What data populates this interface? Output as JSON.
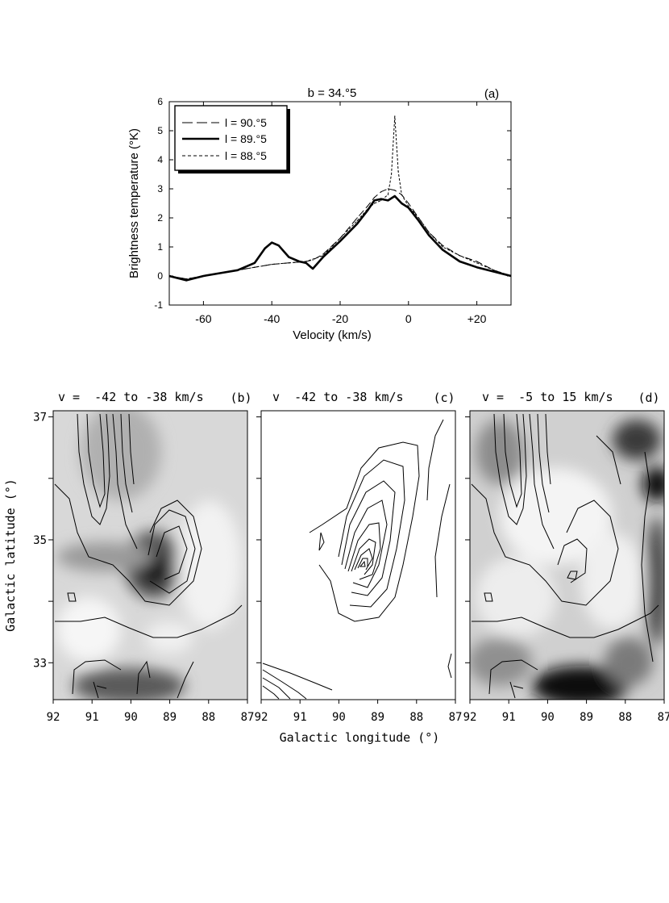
{
  "chart_data": [
    {
      "panel": "(a)",
      "type": "line",
      "title": "b = 34.°5",
      "xlabel": "Velocity (km/s)",
      "ylabel": "Brightness temperature (°K)",
      "xlim": [
        -70,
        30
      ],
      "ylim": [
        -1,
        6
      ],
      "xticks": [
        -60,
        -40,
        -20,
        0,
        20
      ],
      "xticklabels": [
        "-60",
        "-40",
        "-20",
        "0",
        "+20"
      ],
      "yticks": [
        -1,
        0,
        1,
        2,
        3,
        4,
        5,
        6
      ],
      "legend_position": "top-left",
      "series": [
        {
          "name": "l = 90.°5",
          "style": "long-dash",
          "x": [
            -70,
            -65,
            -60,
            -55,
            -50,
            -45,
            -40,
            -35,
            -30,
            -28,
            -25,
            -20,
            -15,
            -12,
            -10,
            -8,
            -6,
            -4,
            -2,
            0,
            3,
            6,
            10,
            15,
            20,
            25,
            30
          ],
          "y": [
            0.0,
            -0.1,
            0.0,
            0.1,
            0.2,
            0.3,
            0.4,
            0.45,
            0.5,
            0.55,
            0.75,
            1.3,
            2.0,
            2.4,
            2.7,
            2.9,
            3.0,
            2.95,
            2.8,
            2.5,
            2.0,
            1.5,
            1.05,
            0.7,
            0.5,
            0.2,
            0.0
          ]
        },
        {
          "name": "l = 89.°5",
          "style": "solid-thick",
          "x": [
            -70,
            -65,
            -60,
            -55,
            -50,
            -45,
            -42,
            -40,
            -38,
            -35,
            -32,
            -30,
            -28,
            -25,
            -20,
            -15,
            -12,
            -10,
            -8,
            -6,
            -4,
            -2,
            0,
            3,
            6,
            10,
            15,
            20,
            25,
            30
          ],
          "y": [
            0.0,
            -0.15,
            0.0,
            0.1,
            0.2,
            0.45,
            0.95,
            1.15,
            1.05,
            0.65,
            0.5,
            0.45,
            0.25,
            0.65,
            1.2,
            1.8,
            2.25,
            2.6,
            2.65,
            2.6,
            2.75,
            2.5,
            2.35,
            1.9,
            1.4,
            0.9,
            0.5,
            0.3,
            0.15,
            0.0
          ]
        },
        {
          "name": "l = 88.°5",
          "style": "short-dash",
          "x": [
            -70,
            -65,
            -60,
            -55,
            -50,
            -45,
            -40,
            -35,
            -30,
            -25,
            -20,
            -15,
            -12,
            -10,
            -8,
            -6,
            -5,
            -4,
            -3,
            -2,
            0,
            3,
            6,
            10,
            15,
            20,
            25,
            30
          ],
          "y": [
            0.0,
            -0.1,
            0.0,
            0.1,
            0.2,
            0.3,
            0.4,
            0.45,
            0.5,
            0.7,
            1.3,
            1.9,
            2.3,
            2.5,
            2.6,
            2.8,
            3.5,
            5.5,
            3.6,
            2.8,
            2.4,
            2.0,
            1.5,
            1.0,
            0.7,
            0.45,
            0.2,
            0.0
          ]
        }
      ]
    },
    {
      "panel": "(b)",
      "type": "heatmap",
      "title": "v =  -42 to -38 km/s",
      "contours": true,
      "xlim": [
        92,
        87
      ],
      "ylim": [
        32.4,
        37.1
      ]
    },
    {
      "panel": "(c)",
      "type": "heatmap",
      "title": "v  -42 to -38 km/s",
      "contours": true,
      "greyscale": false,
      "xlim": [
        92,
        87
      ],
      "ylim": [
        32.4,
        37.1
      ]
    },
    {
      "panel": "(d)",
      "type": "heatmap",
      "title": "v =  -5 to 15 km/s",
      "contours": true,
      "xlim": [
        92,
        87
      ],
      "ylim": [
        32.4,
        37.1
      ]
    }
  ],
  "maps": {
    "xlabel": "Galactic longitude (°)",
    "ylabel": "Galactic latitude (°)",
    "xticks": [
      "92",
      "91",
      "90",
      "89",
      "88",
      "87"
    ],
    "yticks": [
      "37",
      "35",
      "33"
    ],
    "panel_labels": [
      "(b)",
      "(c)",
      "(d)"
    ]
  }
}
